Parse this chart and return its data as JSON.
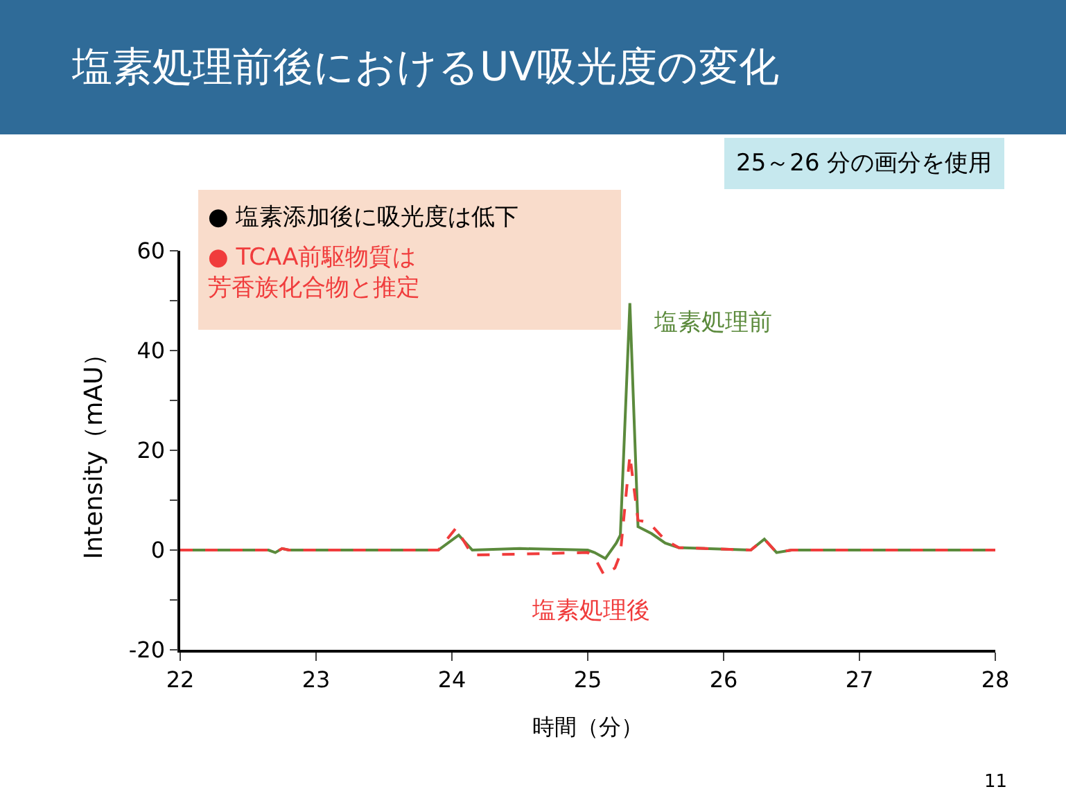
{
  "chart_data": {
    "type": "line",
    "title": "塩素処理前後におけるUV吸光度の変化",
    "xlabel": "時間（分）",
    "ylabel": "Intensity（mAU）",
    "xlim": [
      22,
      28
    ],
    "xticks": [
      22,
      23,
      24,
      25,
      26,
      27,
      28
    ],
    "ylim": [
      -20,
      60
    ],
    "yticks": [
      -20,
      {
        "value": -10,
        "label": null
      },
      0,
      {
        "value": 10,
        "label": null
      },
      20,
      {
        "value": 30,
        "label": null
      },
      40,
      {
        "value": 50,
        "label": null
      },
      60
    ],
    "grid": false,
    "legend": false,
    "marker": "none",
    "annotations": [
      "● 塩素添加後に吸光度は低下",
      "● TCAA前駆物質は芳香族化合物と推定",
      "25～26 分の画分を使用",
      "11"
    ],
    "series": [
      {
        "name": "塩素処理前",
        "color": "#5b8a3c",
        "line_style": "solid",
        "x": [
          22,
          22.65,
          22.7,
          22.75,
          22.8,
          23.9,
          24.05,
          24.15,
          24.5,
          25.0,
          25.05,
          25.13,
          25.21,
          25.24,
          25.31,
          25.37,
          25.47,
          25.57,
          25.67,
          26.2,
          26.3,
          26.39,
          26.5,
          28
        ],
        "values": [
          0,
          0,
          -0.5,
          0.3,
          0,
          0,
          3,
          0,
          0.3,
          0,
          -0.5,
          -1.7,
          1.4,
          3,
          49.5,
          4.7,
          3.3,
          1.4,
          0.5,
          0,
          2.2,
          -0.5,
          0,
          0
        ]
      },
      {
        "name": "塩素処理後",
        "color": "#f03c3c",
        "line_style": "dashed",
        "x": [
          22,
          22.65,
          22.7,
          22.75,
          22.8,
          23.9,
          24.03,
          24.15,
          24.5,
          25.0,
          25.05,
          25.12,
          25.2,
          25.24,
          25.31,
          25.37,
          25.45,
          25.57,
          25.67,
          26.2,
          26.3,
          26.39,
          26.5,
          28
        ],
        "values": [
          0,
          0,
          -0.5,
          0.3,
          0,
          0,
          4.4,
          -1,
          -0.8,
          -0.5,
          -1.5,
          -5,
          -3.6,
          -0.8,
          19,
          6,
          5.5,
          2,
          0.5,
          0,
          2.2,
          -0.5,
          0,
          0
        ]
      }
    ]
  }
}
